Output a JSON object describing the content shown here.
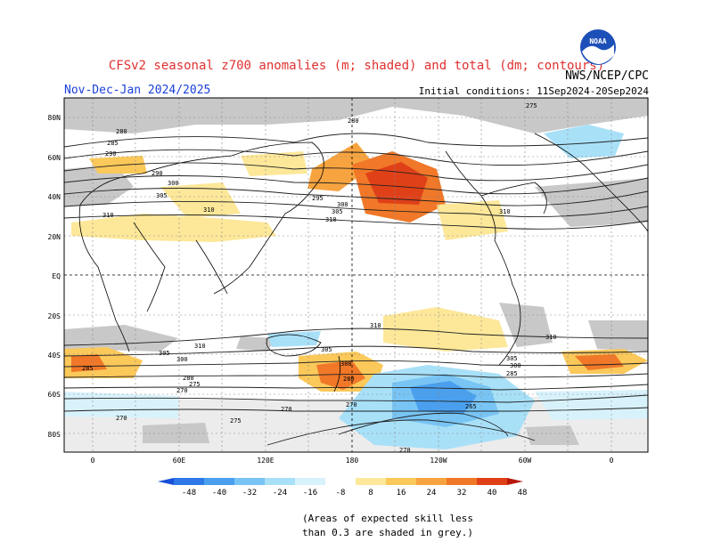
{
  "header": {
    "title": "CFSv2 seasonal z700 anomalies (m; shaded) and total (dm; contours)",
    "agency": "NWS/NCEP/CPC",
    "period": "Nov-Dec-Jan 2024/2025",
    "initial_conditions": "Initial conditions: 11Sep2024-20Sep2024"
  },
  "map": {
    "lat_labels": [
      "80N",
      "60N",
      "40N",
      "20N",
      "EQ",
      "20S",
      "40S",
      "60S",
      "80S"
    ],
    "lon_labels": [
      "0",
      "60E",
      "120E",
      "180",
      "120W",
      "60W",
      "0"
    ],
    "contour_labels": [
      "275",
      "280",
      "285",
      "290",
      "295",
      "300",
      "305",
      "310",
      "265",
      "270"
    ]
  },
  "colorbar": {
    "labels": [
      "-48",
      "-40",
      "-32",
      "-24",
      "-16",
      "-8",
      "8",
      "16",
      "24",
      "32",
      "40",
      "48"
    ],
    "colors": [
      "#1a50d8",
      "#2e78e8",
      "#4aa0ee",
      "#78c4f4",
      "#a8e0f8",
      "#d8f2fc",
      "#ffffff",
      "#fde89a",
      "#fbc85a",
      "#f7a440",
      "#f07828",
      "#e04018",
      "#b81808"
    ]
  },
  "note": {
    "line1": "(Areas of expected skill less",
    "line2": "than 0.3 are shaded in grey.)"
  },
  "colors": {
    "title": "#e03030",
    "period": "#1a3fd8",
    "grey_skill": "#c8c8c8"
  },
  "logo": {
    "icon": "noaa-logo-icon"
  }
}
